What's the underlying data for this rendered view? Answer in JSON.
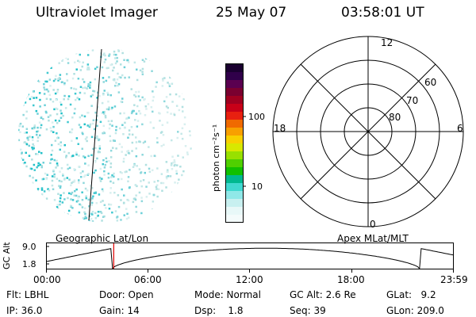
{
  "header": {
    "instrument": "Ultraviolet Imager",
    "date": "25 May 07",
    "time": "03:58:01 UT"
  },
  "colorbar": {
    "label": "photon cm⁻²s⁻¹",
    "ticks": [
      "100",
      "10"
    ],
    "colors": [
      "#1a0030",
      "#30004a",
      "#5a0050",
      "#7a0030",
      "#a00020",
      "#c80018",
      "#e82010",
      "#f06a00",
      "#f8a000",
      "#f8d000",
      "#d8e800",
      "#98e000",
      "#50d000",
      "#10c000",
      "#00b890",
      "#40d8d0",
      "#90e8e8",
      "#c8f0f0",
      "#e8f8f8",
      "#f4fbfb"
    ]
  },
  "polar_plot": {
    "lat_labels": [
      "60",
      "70",
      "80"
    ],
    "mlt_labels": [
      "12",
      "18",
      "6",
      "0"
    ]
  },
  "altitude_plot": {
    "ylabel": "GC Alt",
    "y_ticks": [
      "9.0",
      "1.8"
    ],
    "left_title": "Geographic Lat/Lon",
    "right_title": "Apex MLat/MLT",
    "x_ticks": [
      "00:00",
      "06:00",
      "12:00",
      "18:00",
      "23:59"
    ],
    "marker_color": "#e00000",
    "marker_time_hours": 3.97
  },
  "info": {
    "flt": "Flt: LBHL",
    "door": "Door: Open",
    "mode": "Mode: Normal",
    "gc_alt": "GC Alt: 2.6 Re",
    "glat": "GLat:   9.2",
    "ip": "IP: 36.0",
    "gain": "Gain: 14",
    "dsp": "Dsp:    1.8",
    "seq": "Seq: 39",
    "glon": "GLon: 209.0"
  }
}
